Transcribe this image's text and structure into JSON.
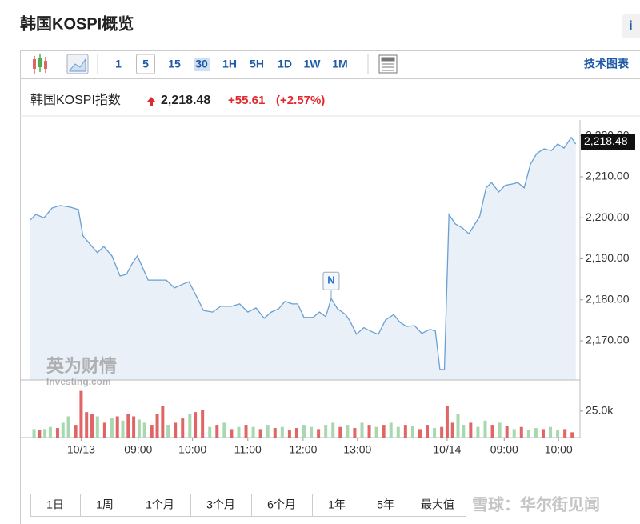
{
  "header": {
    "title": "韩国KOSPI概览",
    "info": "i"
  },
  "toolbar": {
    "intervals": [
      "1",
      "5",
      "15",
      "30",
      "1H",
      "5H",
      "1D",
      "1W",
      "1M"
    ],
    "selected_index": 1,
    "highlighted_index": 3,
    "technical": "技术图表"
  },
  "quote": {
    "name": "韩国KOSPI指数",
    "price": "2,218.48",
    "change": "+55.61",
    "change_pct": "(+2.57%)"
  },
  "chart_data": {
    "type": "line",
    "color": "#6a9fd4",
    "fill": "#e9f0f8",
    "x": [
      0,
      6,
      15,
      24,
      33,
      44,
      53,
      58,
      68,
      74,
      81,
      90,
      99,
      106,
      112,
      118,
      124,
      130,
      141,
      150,
      159,
      169,
      175,
      183,
      191,
      201,
      210,
      222,
      231,
      240,
      249,
      258,
      266,
      274,
      281,
      289,
      295,
      302,
      312,
      319,
      326,
      332,
      339,
      348,
      353,
      360,
      368,
      377,
      384,
      392,
      401,
      408,
      415,
      424,
      432,
      441,
      447,
      452,
      457,
      462,
      469,
      477,
      484,
      489,
      496,
      503,
      509,
      517,
      524,
      531,
      538,
      545,
      552,
      559,
      567,
      575,
      582,
      589,
      597,
      602
    ],
    "values": [
      2199.5,
      2200.8,
      2200,
      2202.4,
      2203,
      2202.6,
      2202,
      2195.6,
      2193,
      2191.5,
      2193,
      2190.7,
      2185.8,
      2186.2,
      2188.7,
      2190.7,
      2187.8,
      2184.8,
      2184.8,
      2184.8,
      2182.9,
      2183.9,
      2184.4,
      2181,
      2177.4,
      2177,
      2178.4,
      2178.4,
      2179,
      2177,
      2178,
      2175.5,
      2177,
      2177.8,
      2179.6,
      2179,
      2179,
      2175.7,
      2175.7,
      2177,
      2175.9,
      2180.3,
      2177.8,
      2176.4,
      2174.7,
      2171.6,
      2173.2,
      2172.2,
      2171.6,
      2175.1,
      2176.4,
      2174.5,
      2173.5,
      2173.7,
      2171.8,
      2172.8,
      2172.4,
      2163,
      2163,
      2200.8,
      2198.5,
      2197.5,
      2196.1,
      2197.9,
      2200.4,
      2207.3,
      2208.6,
      2206.3,
      2207.9,
      2208.2,
      2208.6,
      2207.3,
      2213.1,
      2215.7,
      2216.8,
      2216.4,
      2218,
      2217,
      2219.6,
      2218
    ],
    "xlim": [
      0,
      604
    ],
    "xticks": [
      {
        "value": 56,
        "label": "10/13"
      },
      {
        "value": 119,
        "label": "09:00"
      },
      {
        "value": 179,
        "label": "10:00"
      },
      {
        "value": 240,
        "label": "11:00"
      },
      {
        "value": 301,
        "label": "12:00"
      },
      {
        "value": 361,
        "label": "13:00"
      },
      {
        "value": 460,
        "label": "10/14"
      },
      {
        "value": 523,
        "label": "09:00"
      },
      {
        "value": 583,
        "label": "10:00"
      }
    ],
    "ylim": [
      2160.44,
      2223.85
    ],
    "yticks": [
      {
        "value": 2170,
        "label": "2,170.00"
      },
      {
        "value": 2180,
        "label": "2,180.00"
      },
      {
        "value": 2190,
        "label": "2,190.00"
      },
      {
        "value": 2200,
        "label": "2,200.00"
      },
      {
        "value": 2210,
        "label": "2,210.00"
      },
      {
        "value": 2220,
        "label": "2,220.00"
      }
    ],
    "last_value": {
      "value": 2218.48,
      "label": "2,218.48"
    },
    "reference_line": {
      "value": 2162.87,
      "color": "#e05a5a"
    },
    "annotation": {
      "x": 332,
      "label": "N"
    },
    "watermark": {
      "brand": "英为财情",
      "site": "Investing.com"
    },
    "volume": {
      "x": [
        4,
        10,
        16,
        22,
        30,
        36,
        42,
        50,
        56,
        62,
        68,
        74,
        82,
        90,
        96,
        102,
        108,
        114,
        120,
        126,
        134,
        140,
        146,
        152,
        160,
        168,
        176,
        182,
        190,
        198,
        206,
        214,
        222,
        230,
        238,
        246,
        254,
        262,
        270,
        278,
        286,
        294,
        302,
        310,
        318,
        326,
        334,
        342,
        350,
        358,
        366,
        374,
        382,
        390,
        398,
        406,
        414,
        422,
        430,
        438,
        446,
        454,
        460,
        466,
        472,
        478,
        486,
        494,
        502,
        510,
        518,
        526,
        534,
        542,
        550,
        558,
        566,
        574,
        582,
        590,
        598
      ],
      "values": [
        8000,
        7000,
        8000,
        10000,
        9000,
        14000,
        20000,
        12000,
        44000,
        24000,
        22000,
        20000,
        14000,
        18000,
        20000,
        16000,
        22000,
        20000,
        17000,
        14000,
        12000,
        22000,
        30000,
        12000,
        14000,
        18000,
        22000,
        24000,
        26000,
        10000,
        12000,
        14000,
        8000,
        10000,
        12000,
        10000,
        8000,
        12000,
        9000,
        10000,
        7000,
        9000,
        12000,
        10000,
        8000,
        12000,
        14000,
        10000,
        12000,
        9000,
        14000,
        12000,
        10000,
        12000,
        14000,
        10000,
        12000,
        11000,
        8000,
        12000,
        9000,
        10000,
        30000,
        14000,
        22000,
        12000,
        14000,
        10000,
        16000,
        12000,
        14000,
        11000,
        8000,
        10000,
        7000,
        9000,
        8000,
        10000,
        7000,
        8000,
        5000
      ],
      "colors": [
        "#a8d8b0",
        "#e06666",
        "#a8d8b0",
        "#a8d8b0",
        "#e06666",
        "#a8d8b0",
        "#a8d8b0",
        "#e06666",
        "#e06666",
        "#e06666",
        "#e06666",
        "#a8d8b0",
        "#e06666",
        "#a8d8b0",
        "#e06666",
        "#a8d8b0",
        "#e06666",
        "#e06666",
        "#a8d8b0",
        "#a8d8b0",
        "#e06666",
        "#e06666",
        "#e06666",
        "#a8d8b0",
        "#e06666",
        "#e06666",
        "#a8d8b0",
        "#e06666",
        "#e06666",
        "#a8d8b0",
        "#e06666",
        "#a8d8b0",
        "#e06666",
        "#a8d8b0",
        "#e06666",
        "#a8d8b0",
        "#e06666",
        "#a8d8b0",
        "#e06666",
        "#a8d8b0",
        "#e06666",
        "#e06666",
        "#a8d8b0",
        "#a8d8b0",
        "#e06666",
        "#a8d8b0",
        "#a8d8b0",
        "#e06666",
        "#a8d8b0",
        "#e06666",
        "#a8d8b0",
        "#e06666",
        "#a8d8b0",
        "#e06666",
        "#a8d8b0",
        "#a8d8b0",
        "#e06666",
        "#a8d8b0",
        "#e06666",
        "#e06666",
        "#a8d8b0",
        "#e06666",
        "#e06666",
        "#e06666",
        "#a8d8b0",
        "#a8d8b0",
        "#e06666",
        "#a8d8b0",
        "#a8d8b0",
        "#e06666",
        "#a8d8b0",
        "#e06666",
        "#a8d8b0",
        "#e06666",
        "#a8d8b0",
        "#a8d8b0",
        "#e06666",
        "#a8d8b0",
        "#a8d8b0",
        "#e06666",
        "#e06666"
      ],
      "ylim": [
        0,
        52000
      ],
      "yticks": [
        {
          "value": 25000,
          "label": "25.0k"
        }
      ]
    }
  },
  "ranges": [
    "1日",
    "1周",
    "1个月",
    "3个月",
    "6个月",
    "1年",
    "5年",
    "最大值"
  ],
  "footer_watermark": "雪球：华尔街见闻"
}
